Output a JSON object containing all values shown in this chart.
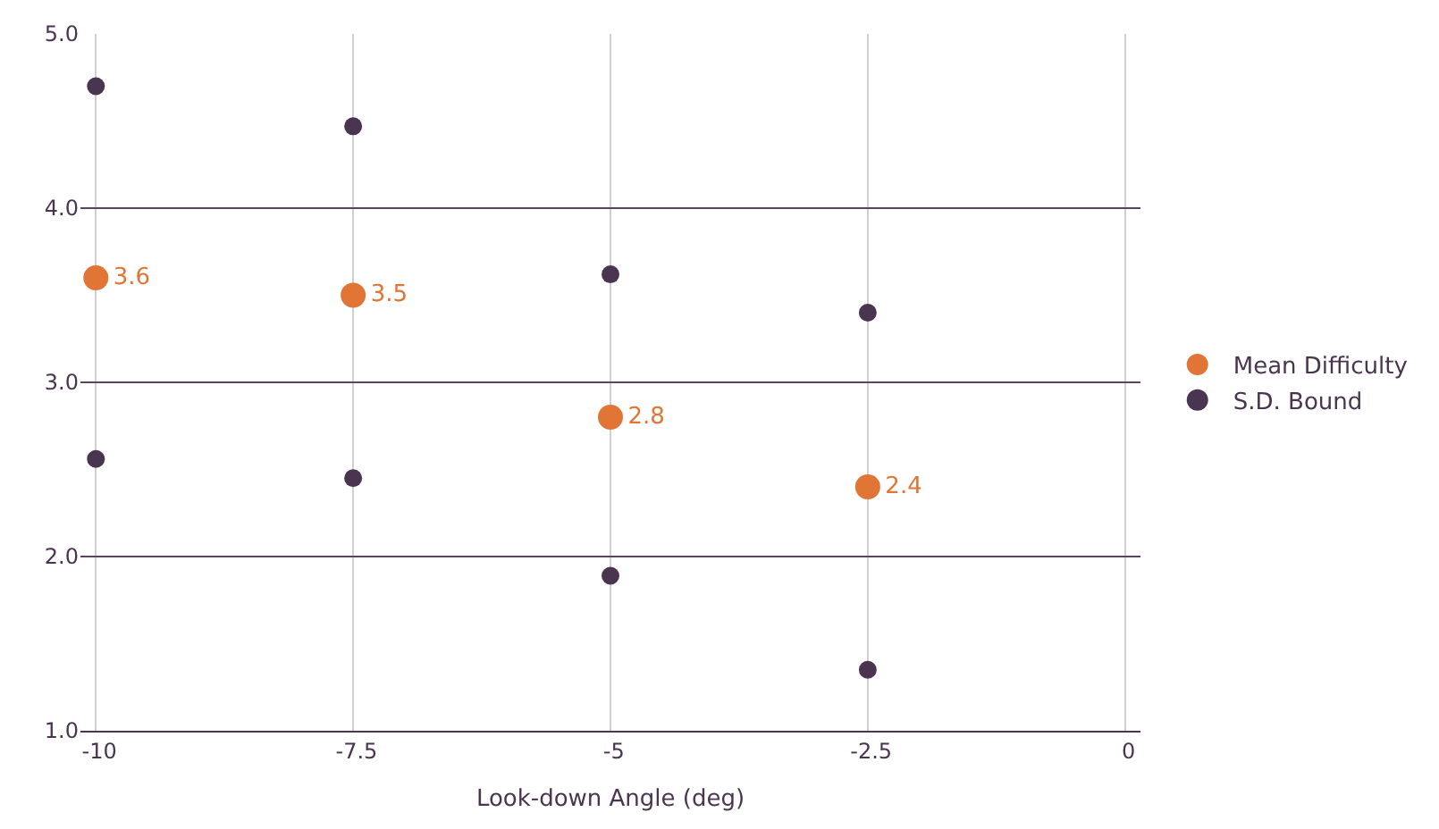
{
  "chart_data": {
    "type": "scatter",
    "xlabel": "Look-down Angle (deg)",
    "xlim": [
      -10.15,
      0.15
    ],
    "xticks": [
      -10,
      -7.5,
      -5,
      -2.5,
      0
    ],
    "ylim": [
      1,
      5
    ],
    "yticks": [
      {
        "value": 1,
        "label": "1.0"
      },
      {
        "value": 2,
        "label": "2.0"
      },
      {
        "value": 3,
        "label": "3.0"
      },
      {
        "value": 4,
        "label": "4.0"
      },
      {
        "value": 5,
        "label": "5.0"
      }
    ],
    "grid": true,
    "legend": "right",
    "marker": "circle",
    "series": [
      {
        "name": "Mean Difficulty",
        "color": "#e07536",
        "x": [
          -10,
          -7.5,
          -5,
          -2.5
        ],
        "values": [
          3.6,
          3.5,
          2.8,
          2.4
        ],
        "data_labels": true
      },
      {
        "name": "S.D. Bound",
        "color": "#4a3550",
        "x": [
          -10,
          -10,
          -7.5,
          -7.5,
          -5,
          -5,
          -2.5,
          -2.5
        ],
        "values": [
          4.7,
          2.56,
          4.47,
          2.45,
          3.62,
          1.89,
          3.4,
          1.35
        ]
      }
    ]
  }
}
